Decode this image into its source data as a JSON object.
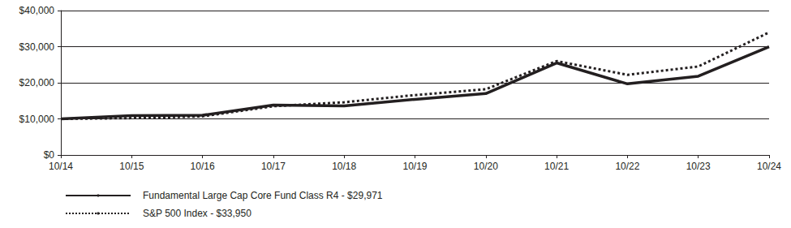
{
  "chart_data": {
    "type": "line",
    "categories": [
      "10/14",
      "10/15",
      "10/16",
      "10/17",
      "10/18",
      "10/19",
      "10/20",
      "10/21",
      "10/22",
      "10/23",
      "10/24"
    ],
    "series": [
      {
        "name": "Fundamental Large Cap Core Fund Class R4 - $29,971",
        "color": "#231f20",
        "line_style": "solid",
        "values": [
          10000,
          10900,
          11000,
          13800,
          13600,
          15400,
          17000,
          25500,
          19700,
          21800,
          29971
        ]
      },
      {
        "name": "S&P 500 Index - $33,950",
        "color": "#231f20",
        "line_style": "dotted",
        "values": [
          10000,
          10200,
          10700,
          13500,
          14600,
          16600,
          18200,
          26000,
          22200,
          24500,
          33950
        ]
      }
    ],
    "ylim": [
      0,
      40000
    ],
    "yticks": [
      {
        "value": 0,
        "label": "$0"
      },
      {
        "value": 10000,
        "label": "$10,000"
      },
      {
        "value": 20000,
        "label": "$20,000"
      },
      {
        "value": 30000,
        "label": "$30,000"
      },
      {
        "value": 40000,
        "label": "$40,000"
      }
    ],
    "grid": true,
    "legend": "bottom-left"
  }
}
